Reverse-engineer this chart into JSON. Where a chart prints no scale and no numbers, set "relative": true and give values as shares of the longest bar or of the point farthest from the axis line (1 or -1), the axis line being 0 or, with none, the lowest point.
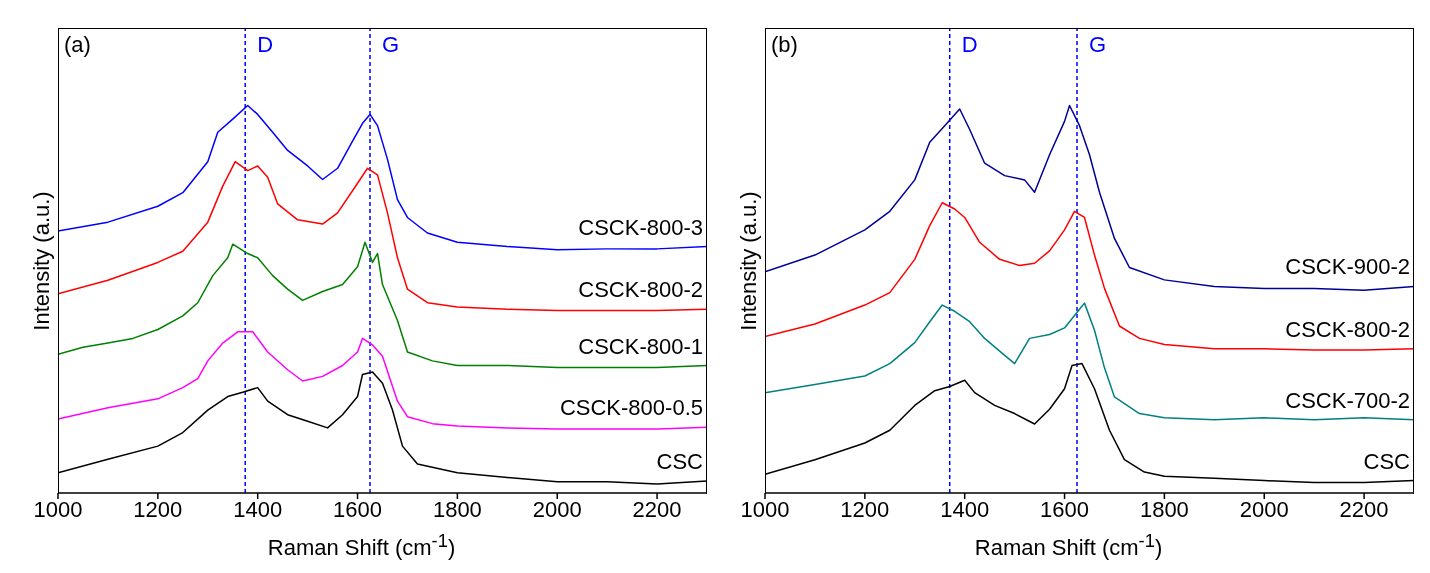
{
  "chart_data": [
    {
      "type": "line",
      "xlabel": "Raman Shift (cm$^{-1}$)",
      "ylabel": "Intensity (a.u.)",
      "relative": true,
      "xlim": [
        1000,
        2300
      ],
      "xticks": [
        1000,
        1200,
        1400,
        1600,
        1800,
        2000,
        2200
      ],
      "legend": false,
      "grid": false,
      "marker": "none",
      "line_style": "solid",
      "annotations": [
        "(a)"
      ],
      "ref_lines": [
        {
          "axis": "x",
          "value": 1375,
          "label": "D",
          "color": "#0000ff",
          "line_style": "dashed"
        },
        {
          "axis": "x",
          "value": 1625,
          "label": "G",
          "color": "#0000ff",
          "line_style": "dashed"
        }
      ],
      "series": [
        {
          "name": "CSCK-800-3",
          "color": "#0000ff",
          "x": [
            1000,
            1100,
            1200,
            1250,
            1300,
            1320,
            1350,
            1380,
            1400,
            1430,
            1460,
            1500,
            1530,
            1560,
            1590,
            1610,
            1625,
            1640,
            1660,
            1680,
            1700,
            1740,
            1800,
            1900,
            2000,
            2100,
            2200,
            2300
          ],
          "values": [
            0.676,
            0.699,
            0.74,
            0.775,
            0.855,
            0.931,
            0.965,
            1,
            0.977,
            0.931,
            0.884,
            0.844,
            0.809,
            0.838,
            0.908,
            0.954,
            0.977,
            0.948,
            0.861,
            0.757,
            0.711,
            0.671,
            0.647,
            0.636,
            0.628,
            0.63,
            0.63,
            0.636
          ]
        },
        {
          "name": "CSCK-800-2",
          "color": "#ff0000",
          "x": [
            1000,
            1100,
            1200,
            1250,
            1300,
            1330,
            1355,
            1380,
            1400,
            1420,
            1440,
            1480,
            1530,
            1560,
            1590,
            1620,
            1640,
            1660,
            1680,
            1700,
            1740,
            1800,
            1900,
            2000,
            2100,
            2200,
            2300
          ],
          "values": [
            0.514,
            0.549,
            0.595,
            0.624,
            0.699,
            0.792,
            0.855,
            0.832,
            0.844,
            0.815,
            0.746,
            0.705,
            0.694,
            0.723,
            0.78,
            0.838,
            0.821,
            0.723,
            0.607,
            0.526,
            0.491,
            0.48,
            0.474,
            0.471,
            0.471,
            0.471,
            0.474
          ]
        },
        {
          "name": "CSCK-800-1",
          "color": "#008000",
          "x": [
            1000,
            1050,
            1100,
            1150,
            1200,
            1250,
            1280,
            1310,
            1340,
            1350,
            1380,
            1400,
            1430,
            1460,
            1490,
            1530,
            1570,
            1600,
            1615,
            1630,
            1640,
            1650,
            1680,
            1700,
            1750,
            1800,
            1900,
            2000,
            2100,
            2200,
            2300
          ],
          "values": [
            0.358,
            0.376,
            0.387,
            0.399,
            0.422,
            0.457,
            0.491,
            0.561,
            0.607,
            0.642,
            0.618,
            0.607,
            0.561,
            0.526,
            0.497,
            0.52,
            0.538,
            0.584,
            0.647,
            0.595,
            0.618,
            0.538,
            0.445,
            0.364,
            0.341,
            0.329,
            0.329,
            0.324,
            0.324,
            0.324,
            0.329
          ]
        },
        {
          "name": "CSCK-800-0.5",
          "color": "#ff00ff",
          "x": [
            1000,
            1100,
            1200,
            1250,
            1280,
            1300,
            1330,
            1360,
            1390,
            1420,
            1460,
            1490,
            1530,
            1570,
            1600,
            1610,
            1630,
            1650,
            1680,
            1700,
            1750,
            1800,
            1900,
            2000,
            2100,
            2200,
            2300
          ],
          "values": [
            0.191,
            0.22,
            0.243,
            0.272,
            0.295,
            0.341,
            0.387,
            0.416,
            0.416,
            0.364,
            0.318,
            0.289,
            0.301,
            0.329,
            0.364,
            0.399,
            0.382,
            0.353,
            0.237,
            0.197,
            0.179,
            0.173,
            0.168,
            0.165,
            0.165,
            0.165,
            0.17
          ]
        },
        {
          "name": "CSC",
          "color": "#000000",
          "x": [
            1000,
            1100,
            1200,
            1250,
            1300,
            1340,
            1370,
            1400,
            1420,
            1460,
            1500,
            1540,
            1570,
            1600,
            1610,
            1630,
            1650,
            1670,
            1690,
            1720,
            1800,
            1900,
            2000,
            2100,
            2200,
            2300
          ],
          "values": [
            0.052,
            0.087,
            0.121,
            0.156,
            0.214,
            0.249,
            0.26,
            0.272,
            0.237,
            0.202,
            0.185,
            0.168,
            0.202,
            0.249,
            0.306,
            0.312,
            0.283,
            0.214,
            0.121,
            0.075,
            0.052,
            0.04,
            0.029,
            0.029,
            0.023,
            0.031
          ]
        }
      ]
    },
    {
      "type": "line",
      "xlabel": "Raman Shift (cm$^{-1}$)",
      "ylabel": "Intensity (a.u.)",
      "relative": true,
      "xlim": [
        1000,
        2300
      ],
      "xticks": [
        1000,
        1200,
        1400,
        1600,
        1800,
        2000,
        2200
      ],
      "legend": false,
      "grid": false,
      "marker": "none",
      "line_style": "solid",
      "annotations": [
        "(b)"
      ],
      "ref_lines": [
        {
          "axis": "x",
          "value": 1370,
          "label": "D",
          "color": "#0000ff",
          "line_style": "dashed"
        },
        {
          "axis": "x",
          "value": 1625,
          "label": "G",
          "color": "#0000ff",
          "line_style": "dashed"
        }
      ],
      "series": [
        {
          "name": "CSCK-900-2",
          "color": "#000099",
          "x": [
            1000,
            1100,
            1200,
            1250,
            1300,
            1330,
            1360,
            1390,
            1410,
            1440,
            1480,
            1520,
            1540,
            1570,
            1600,
            1610,
            1630,
            1650,
            1670,
            1700,
            1730,
            1800,
            1900,
            2000,
            2100,
            2200,
            2300
          ],
          "values": [
            0.571,
            0.614,
            0.679,
            0.727,
            0.808,
            0.905,
            0.948,
            0.991,
            0.938,
            0.851,
            0.819,
            0.808,
            0.776,
            0.873,
            0.959,
            1,
            0.948,
            0.873,
            0.776,
            0.657,
            0.582,
            0.55,
            0.533,
            0.528,
            0.528,
            0.523,
            0.533
          ]
        },
        {
          "name": "CSCK-800-2",
          "color": "#ff0000",
          "x": [
            1000,
            1100,
            1200,
            1250,
            1300,
            1330,
            1355,
            1380,
            1400,
            1430,
            1470,
            1510,
            1540,
            1570,
            1600,
            1620,
            1640,
            1660,
            1680,
            1710,
            1750,
            1800,
            1900,
            2000,
            2100,
            2200,
            2300
          ],
          "values": [
            0.404,
            0.436,
            0.485,
            0.517,
            0.603,
            0.69,
            0.749,
            0.733,
            0.711,
            0.647,
            0.603,
            0.587,
            0.593,
            0.625,
            0.679,
            0.727,
            0.711,
            0.614,
            0.528,
            0.431,
            0.399,
            0.383,
            0.372,
            0.372,
            0.369,
            0.369,
            0.372
          ]
        },
        {
          "name": "CSCK-700-2",
          "color": "#008080",
          "x": [
            1000,
            1100,
            1200,
            1250,
            1300,
            1330,
            1355,
            1380,
            1410,
            1440,
            1470,
            1500,
            1530,
            1570,
            1600,
            1630,
            1640,
            1660,
            1680,
            1700,
            1750,
            1800,
            1900,
            2000,
            2100,
            2200,
            2300
          ],
          "values": [
            0.259,
            0.28,
            0.302,
            0.334,
            0.388,
            0.442,
            0.485,
            0.469,
            0.442,
            0.399,
            0.366,
            0.334,
            0.399,
            0.409,
            0.426,
            0.474,
            0.49,
            0.42,
            0.323,
            0.248,
            0.205,
            0.194,
            0.189,
            0.194,
            0.189,
            0.194,
            0.189
          ]
        },
        {
          "name": "CSC",
          "color": "#000000",
          "x": [
            1000,
            1100,
            1200,
            1250,
            1300,
            1340,
            1370,
            1400,
            1420,
            1460,
            1500,
            1540,
            1570,
            1600,
            1615,
            1635,
            1660,
            1690,
            1720,
            1760,
            1800,
            1900,
            2000,
            2100,
            2200,
            2300
          ],
          "values": [
            0.048,
            0.086,
            0.129,
            0.162,
            0.226,
            0.264,
            0.275,
            0.291,
            0.259,
            0.226,
            0.205,
            0.178,
            0.216,
            0.269,
            0.329,
            0.334,
            0.269,
            0.162,
            0.086,
            0.054,
            0.043,
            0.038,
            0.032,
            0.027,
            0.027,
            0.032
          ]
        }
      ]
    }
  ]
}
